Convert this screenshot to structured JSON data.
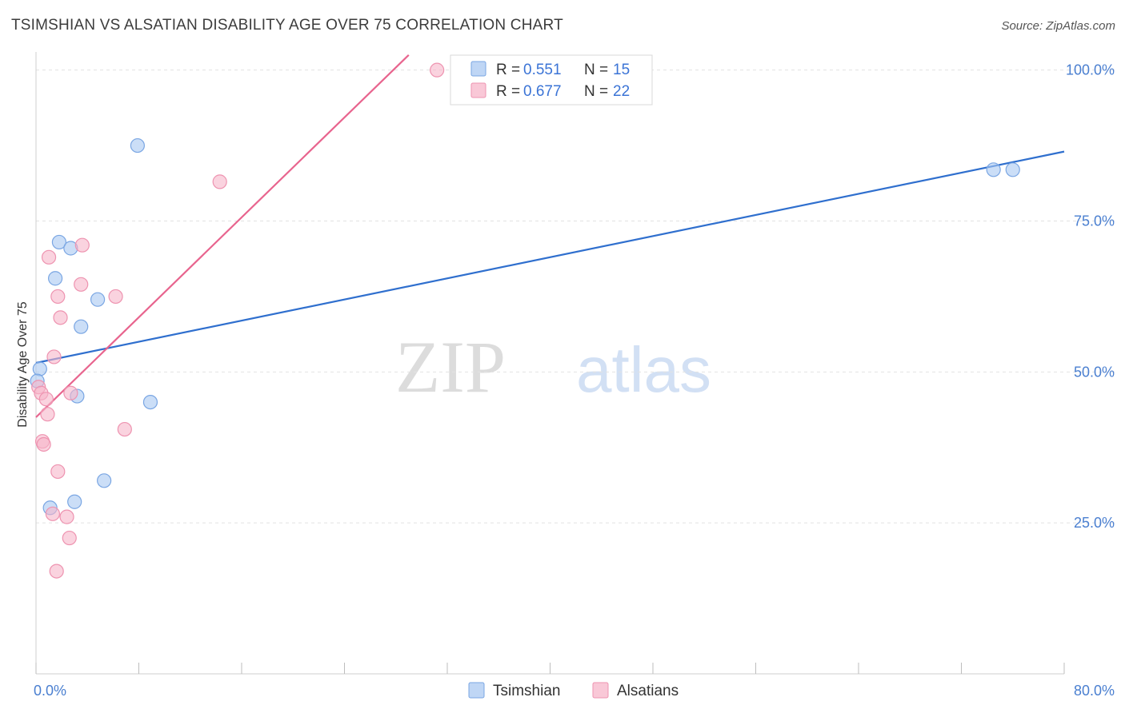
{
  "title": "TSIMSHIAN VS ALSATIAN DISABILITY AGE OVER 75 CORRELATION CHART",
  "source": "Source: ZipAtlas.com",
  "watermark": {
    "zip": "ZIP",
    "atlas": "atlas"
  },
  "chart_data": {
    "type": "scatter",
    "xlabel": "",
    "ylabel": "Disability Age Over 75",
    "xlim": [
      0,
      80
    ],
    "ylim": [
      0,
      103
    ],
    "x_tick_labels": [
      {
        "value": 0,
        "label": "0.0%"
      },
      {
        "value": 80,
        "label": "80.0%"
      }
    ],
    "y_tick_labels": [
      {
        "value": 25,
        "label": "25.0%"
      },
      {
        "value": 50,
        "label": "50.0%"
      },
      {
        "value": 75,
        "label": "75.0%"
      },
      {
        "value": 100,
        "label": "100.0%"
      }
    ],
    "x_minor_ticks": [
      0,
      8,
      16,
      24,
      32,
      40,
      48,
      56,
      64,
      72,
      80
    ],
    "grid": true,
    "legend": {
      "position": "top-center",
      "rows": [
        {
          "r_label": "R = ",
          "r_value": "0.551",
          "n_label": "N = ",
          "n_value": "15",
          "color": "#a9c8f2"
        },
        {
          "r_label": "R = ",
          "r_value": "0.677",
          "n_label": "N = ",
          "n_value": "22",
          "color": "#f7b6ca"
        }
      ]
    },
    "series": [
      {
        "name": "Tsimshian",
        "color": "#a9c8f2",
        "stroke": "#7aa6e3",
        "line_color": "#2f6fce",
        "points": [
          {
            "x": 0.3,
            "y": 50.5
          },
          {
            "x": 7.9,
            "y": 87.5
          },
          {
            "x": 1.8,
            "y": 71.5
          },
          {
            "x": 2.7,
            "y": 70.5
          },
          {
            "x": 1.5,
            "y": 65.5
          },
          {
            "x": 4.8,
            "y": 62.0
          },
          {
            "x": 3.5,
            "y": 57.5
          },
          {
            "x": 3.2,
            "y": 46.0
          },
          {
            "x": 8.9,
            "y": 45.0
          },
          {
            "x": 5.3,
            "y": 32.0
          },
          {
            "x": 3.0,
            "y": 28.5
          },
          {
            "x": 1.1,
            "y": 27.5
          },
          {
            "x": 74.5,
            "y": 83.5
          },
          {
            "x": 76.0,
            "y": 83.5
          },
          {
            "x": 0.1,
            "y": 48.5
          }
        ],
        "trend": {
          "x0": 0,
          "y0": 51.5,
          "x1": 80,
          "y1": 86.5
        }
      },
      {
        "name": "Alsatians",
        "color": "#f7b6ca",
        "stroke": "#ee93b0",
        "line_color": "#e8648e",
        "points": [
          {
            "x": 31.2,
            "y": 100.0
          },
          {
            "x": 14.3,
            "y": 81.5
          },
          {
            "x": 3.6,
            "y": 71.0
          },
          {
            "x": 1.0,
            "y": 69.0
          },
          {
            "x": 3.5,
            "y": 64.5
          },
          {
            "x": 6.2,
            "y": 62.5
          },
          {
            "x": 1.7,
            "y": 62.5
          },
          {
            "x": 1.9,
            "y": 59.0
          },
          {
            "x": 1.4,
            "y": 52.5
          },
          {
            "x": 0.2,
            "y": 47.5
          },
          {
            "x": 2.7,
            "y": 46.5
          },
          {
            "x": 0.4,
            "y": 46.5
          },
          {
            "x": 0.8,
            "y": 45.5
          },
          {
            "x": 0.9,
            "y": 43.0
          },
          {
            "x": 6.9,
            "y": 40.5
          },
          {
            "x": 0.5,
            "y": 38.5
          },
          {
            "x": 0.6,
            "y": 38.0
          },
          {
            "x": 1.7,
            "y": 33.5
          },
          {
            "x": 1.3,
            "y": 26.5
          },
          {
            "x": 2.4,
            "y": 26.0
          },
          {
            "x": 2.6,
            "y": 22.5
          },
          {
            "x": 1.6,
            "y": 17.0
          }
        ],
        "trend": {
          "x0": 0,
          "y0": 42.5,
          "x1": 29,
          "y1": 102.5
        }
      }
    ]
  }
}
